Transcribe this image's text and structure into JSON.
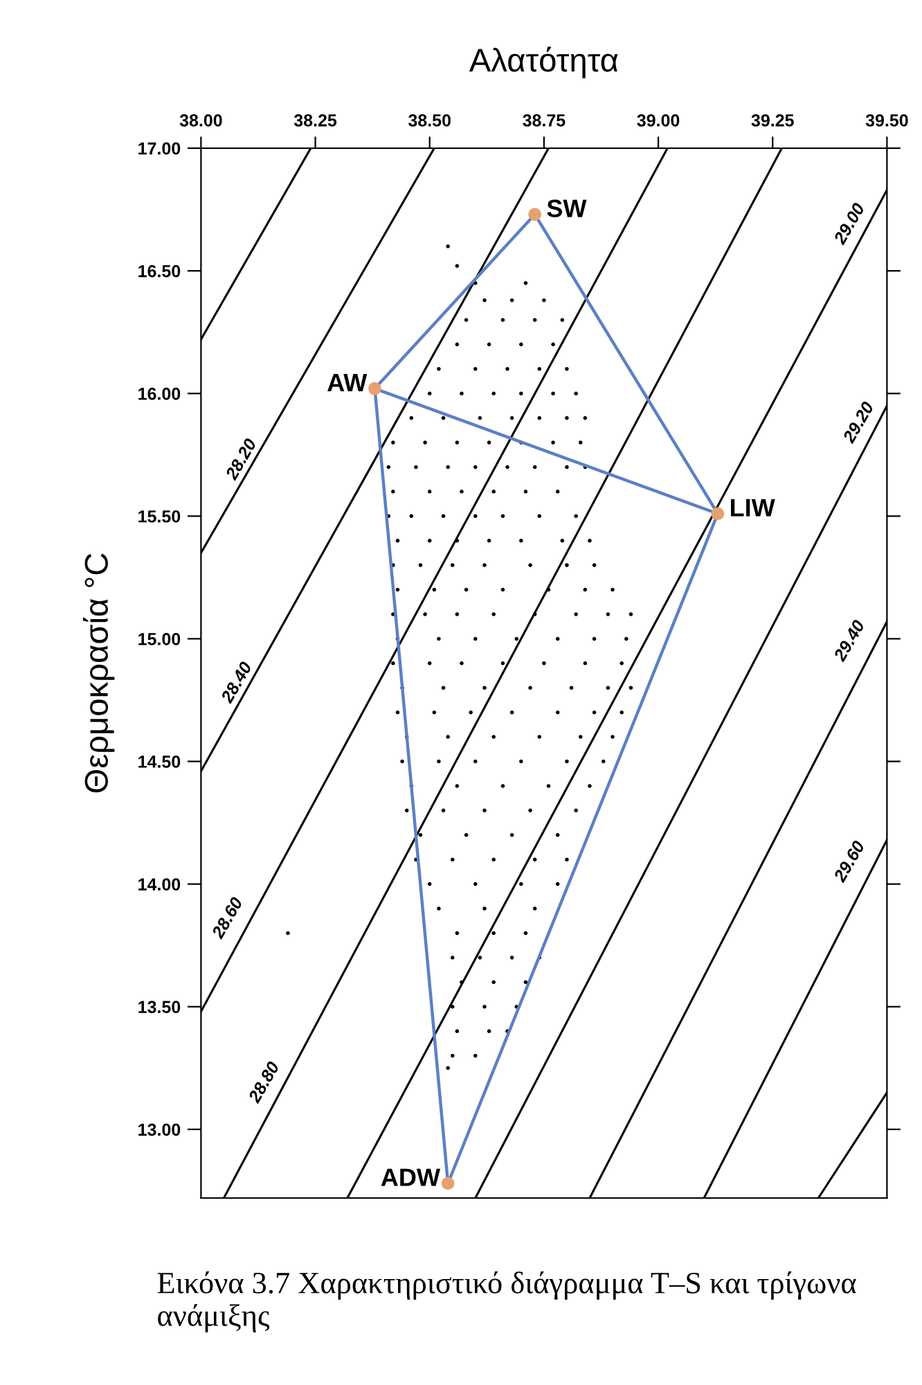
{
  "chart_data": {
    "type": "scatter",
    "xlabel": "Αλατότητα",
    "ylabel": "Θερμοκρασία °C",
    "xlim": [
      38.0,
      39.5
    ],
    "ylim": [
      12.72,
      17.0
    ],
    "xticks": [
      {
        "value": 38.0,
        "label": "38.00"
      },
      {
        "value": 38.25,
        "label": "38.25"
      },
      {
        "value": 38.5,
        "label": "38.50"
      },
      {
        "value": 38.75,
        "label": "38.75"
      },
      {
        "value": 39.0,
        "label": "39.00"
      },
      {
        "value": 39.25,
        "label": "39.25"
      },
      {
        "value": 39.5,
        "label": "39.50"
      }
    ],
    "yticks": [
      {
        "value": 13.0,
        "label": "13.00"
      },
      {
        "value": 13.5,
        "label": "13.50"
      },
      {
        "value": 14.0,
        "label": "14.00"
      },
      {
        "value": 14.5,
        "label": "14.50"
      },
      {
        "value": 15.0,
        "label": "15.00"
      },
      {
        "value": 15.5,
        "label": "15.50"
      },
      {
        "value": 16.0,
        "label": "16.00"
      },
      {
        "value": 16.5,
        "label": "16.50"
      },
      {
        "value": 17.0,
        "label": "17.00"
      }
    ],
    "grid": false,
    "legend": false,
    "series": [
      {
        "type": "line",
        "color": "#000000",
        "x": [
          38.0,
          38.24
        ],
        "values": [
          16.22,
          17.0
        ]
      },
      {
        "type": "line",
        "color": "#000000",
        "x": [
          38.0,
          38.51
        ],
        "values": [
          15.35,
          17.0
        ]
      },
      {
        "type": "line",
        "color": "#000000",
        "x": [
          38.0,
          38.76
        ],
        "values": [
          14.46,
          17.0
        ]
      },
      {
        "type": "line",
        "color": "#000000",
        "x": [
          38.0,
          39.02
        ],
        "values": [
          13.48,
          17.0
        ]
      },
      {
        "type": "line",
        "color": "#000000",
        "x": [
          38.05,
          39.27
        ],
        "values": [
          12.72,
          17.0
        ]
      },
      {
        "type": "line",
        "color": "#000000",
        "x": [
          38.32,
          39.5
        ],
        "values": [
          12.72,
          16.83
        ]
      },
      {
        "type": "line",
        "color": "#000000",
        "x": [
          38.6,
          39.5
        ],
        "values": [
          12.72,
          15.95
        ]
      },
      {
        "type": "line",
        "color": "#000000",
        "x": [
          38.85,
          39.5
        ],
        "values": [
          12.72,
          15.07
        ]
      },
      {
        "type": "line",
        "color": "#000000",
        "x": [
          39.1,
          39.5
        ],
        "values": [
          12.72,
          14.18
        ]
      },
      {
        "type": "line",
        "color": "#000000",
        "x": [
          39.35,
          39.5
        ],
        "values": [
          12.72,
          13.15
        ]
      },
      {
        "color": "#000000",
        "marker": "circle",
        "x": [
          38.54,
          38.56,
          38.6,
          38.71,
          38.62,
          38.68,
          38.75,
          38.58,
          38.66,
          38.73,
          38.79,
          38.56,
          38.63,
          38.7,
          38.77,
          38.52,
          38.6,
          38.67,
          38.74,
          38.8,
          38.5,
          38.57,
          38.64,
          38.7,
          38.77,
          38.82,
          38.46,
          38.53,
          38.61,
          38.68,
          38.74,
          38.8,
          38.84,
          38.42,
          38.49,
          38.56,
          38.63,
          38.7,
          38.77,
          38.83,
          38.41,
          38.47,
          38.54,
          38.6,
          38.67,
          38.73,
          38.8,
          38.84,
          38.42,
          38.5,
          38.57,
          38.64,
          38.71,
          38.78,
          38.41,
          38.46,
          38.53,
          38.6,
          38.66,
          38.74,
          38.82,
          38.43,
          38.5,
          38.56,
          38.63,
          38.7,
          38.79,
          38.85,
          38.42,
          38.48,
          38.55,
          38.62,
          38.72,
          38.8,
          38.86,
          38.43,
          38.51,
          38.58,
          38.66,
          38.76,
          38.84,
          38.9,
          38.42,
          38.49,
          38.56,
          38.64,
          38.73,
          38.82,
          38.89,
          38.94,
          38.43,
          38.52,
          38.6,
          38.69,
          38.78,
          38.86,
          38.93,
          38.42,
          38.5,
          38.57,
          38.66,
          38.75,
          38.84,
          38.92,
          38.44,
          38.53,
          38.62,
          38.72,
          38.81,
          38.89,
          38.94,
          38.43,
          38.51,
          38.59,
          38.68,
          38.78,
          38.86,
          38.92,
          38.45,
          38.54,
          38.64,
          38.74,
          38.83,
          38.9,
          38.44,
          38.52,
          38.6,
          38.7,
          38.8,
          38.88,
          38.46,
          38.56,
          38.66,
          38.76,
          38.85,
          38.45,
          38.53,
          38.62,
          38.72,
          38.82,
          38.48,
          38.58,
          38.68,
          38.78,
          38.47,
          38.55,
          38.64,
          38.73,
          38.8,
          38.5,
          38.6,
          38.7,
          38.78,
          38.52,
          38.62,
          38.73,
          38.56,
          38.64,
          38.71,
          38.55,
          38.61,
          38.68,
          38.74,
          38.57,
          38.64,
          38.71,
          38.55,
          38.62,
          38.69,
          38.56,
          38.63,
          38.67,
          38.55,
          38.6,
          38.54,
          38.19
        ],
        "values": [
          16.6,
          16.52,
          16.45,
          16.45,
          16.38,
          16.38,
          16.38,
          16.3,
          16.3,
          16.3,
          16.3,
          16.2,
          16.2,
          16.2,
          16.2,
          16.1,
          16.1,
          16.1,
          16.1,
          16.1,
          16.0,
          16.0,
          16.0,
          16.0,
          16.0,
          16.0,
          15.9,
          15.9,
          15.9,
          15.9,
          15.9,
          15.9,
          15.9,
          15.8,
          15.8,
          15.8,
          15.8,
          15.8,
          15.8,
          15.8,
          15.7,
          15.7,
          15.7,
          15.7,
          15.7,
          15.7,
          15.7,
          15.7,
          15.6,
          15.6,
          15.6,
          15.6,
          15.6,
          15.6,
          15.5,
          15.5,
          15.5,
          15.5,
          15.5,
          15.5,
          15.5,
          15.4,
          15.4,
          15.4,
          15.4,
          15.4,
          15.4,
          15.4,
          15.3,
          15.3,
          15.3,
          15.3,
          15.3,
          15.3,
          15.3,
          15.2,
          15.2,
          15.2,
          15.2,
          15.2,
          15.2,
          15.2,
          15.1,
          15.1,
          15.1,
          15.1,
          15.1,
          15.1,
          15.1,
          15.1,
          15.0,
          15.0,
          15.0,
          15.0,
          15.0,
          15.0,
          15.0,
          14.9,
          14.9,
          14.9,
          14.9,
          14.9,
          14.9,
          14.9,
          14.8,
          14.8,
          14.8,
          14.8,
          14.8,
          14.8,
          14.8,
          14.7,
          14.7,
          14.7,
          14.7,
          14.7,
          14.7,
          14.7,
          14.6,
          14.6,
          14.6,
          14.6,
          14.6,
          14.6,
          14.5,
          14.5,
          14.5,
          14.5,
          14.5,
          14.5,
          14.4,
          14.4,
          14.4,
          14.4,
          14.4,
          14.3,
          14.3,
          14.3,
          14.3,
          14.3,
          14.2,
          14.2,
          14.2,
          14.2,
          14.1,
          14.1,
          14.1,
          14.1,
          14.1,
          14.0,
          14.0,
          14.0,
          14.0,
          13.9,
          13.9,
          13.9,
          13.8,
          13.8,
          13.8,
          13.7,
          13.7,
          13.7,
          13.7,
          13.6,
          13.6,
          13.6,
          13.5,
          13.5,
          13.5,
          13.4,
          13.4,
          13.4,
          13.3,
          13.3,
          13.25,
          13.8
        ]
      },
      {
        "type": "line",
        "color": "#5b80c4",
        "x": [
          38.38,
          38.73,
          39.13,
          38.54,
          38.38,
          39.13
        ],
        "values": [
          16.02,
          16.73,
          15.51,
          12.78,
          16.02,
          15.51
        ]
      },
      {
        "color": "#e8a070",
        "marker": "circle",
        "x": [
          38.73,
          38.38,
          39.13,
          38.54
        ],
        "values": [
          16.73,
          16.02,
          15.51,
          12.78
        ]
      }
    ],
    "annotations": [
      {
        "text": "SW",
        "x": 38.73,
        "y": 16.73
      },
      {
        "text": "AW",
        "x": 38.38,
        "y": 16.02
      },
      {
        "text": "LIW",
        "x": 39.13,
        "y": 15.51
      },
      {
        "text": "ADW",
        "x": 38.54,
        "y": 12.78
      },
      {
        "text": "28.20",
        "x": 38.09,
        "y": 15.73
      },
      {
        "text": "28.40",
        "x": 38.08,
        "y": 14.82
      },
      {
        "text": "28.60",
        "x": 38.06,
        "y": 13.86
      },
      {
        "text": "28.80",
        "x": 38.14,
        "y": 13.19
      },
      {
        "text": "29.00",
        "x": 39.42,
        "y": 16.69
      },
      {
        "text": "29.20",
        "x": 39.44,
        "y": 15.88
      },
      {
        "text": "29.40",
        "x": 39.42,
        "y": 14.99
      },
      {
        "text": "29.60",
        "x": 39.42,
        "y": 14.09
      },
      "Εικόνα 3.7 Χαρακτηριστικό διάγραμμα T–S και τρίγωνα ανάμιξης"
    ]
  }
}
